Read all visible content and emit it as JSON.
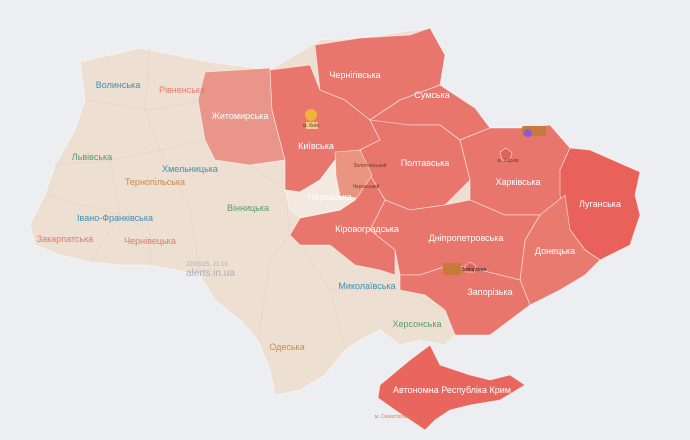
{
  "colors": {
    "background": "#eceef1",
    "no_alert": "#eddfd1",
    "alert": "#e8766c",
    "alert_light": "#e9958a",
    "alert_strong": "#e8615a",
    "raion_alert": "#e9957f"
  },
  "regions": [
    {
      "key": "volyn",
      "label": "Волинська",
      "alert": false,
      "color": "#3a8fb5"
    },
    {
      "key": "rivne",
      "label": "Рівненська",
      "alert": false,
      "color": "#e07a6a"
    },
    {
      "key": "lviv",
      "label": "Львівська",
      "alert": false,
      "color": "#5a9a6a"
    },
    {
      "key": "ternopil",
      "label": "Тернопільська",
      "alert": false,
      "color": "#c98a4a"
    },
    {
      "key": "khmelnytskyi",
      "label": "Хмельницька",
      "alert": false,
      "color": "#3a8fb5"
    },
    {
      "key": "ivano",
      "label": "Івано-Франківська",
      "alert": false,
      "color": "#3a8fb5"
    },
    {
      "key": "zakarpattia",
      "label": "Закарпатська",
      "alert": false,
      "color": "#e07a6a"
    },
    {
      "key": "chernivtsi",
      "label": "Чернівецька",
      "alert": false,
      "color": "#e07a6a"
    },
    {
      "key": "vinnytsia",
      "label": "Вінницька",
      "alert": false,
      "color": "#5a9a6a"
    },
    {
      "key": "zhytomyr",
      "label": "Житомирська",
      "alert": true
    },
    {
      "key": "kyiv",
      "label": "Київська",
      "alert": true
    },
    {
      "key": "chernihiv",
      "label": "Чернігівська",
      "alert": true
    },
    {
      "key": "sumy",
      "label": "Сумська",
      "alert": true
    },
    {
      "key": "poltava",
      "label": "Полтавська",
      "alert": true
    },
    {
      "key": "kharkiv",
      "label": "Харківська",
      "alert": true
    },
    {
      "key": "luhansk",
      "label": "Луганська",
      "alert": true
    },
    {
      "key": "donetsk",
      "label": "Донецька",
      "alert": true
    },
    {
      "key": "dnipro",
      "label": "Дніпропетровська",
      "alert": true
    },
    {
      "key": "zaporizhzhia",
      "label": "Запорізька",
      "alert": true
    },
    {
      "key": "kirovohrad",
      "label": "Кіровоградська",
      "alert": true
    },
    {
      "key": "cherkasy",
      "label": "Черкаська",
      "alert": false,
      "color": "#ffffff"
    },
    {
      "key": "mykolaiv",
      "label": "Миколаївська",
      "alert": false,
      "color": "#3a8fb5"
    },
    {
      "key": "odesa",
      "label": "Одеська",
      "alert": false,
      "color": "#c98a4a"
    },
    {
      "key": "kherson",
      "label": "Херсонська",
      "alert": false,
      "color": "#5a9a6a"
    },
    {
      "key": "crimea",
      "label": "Автономна Республіка Крим",
      "alert": true
    }
  ],
  "small_labels": {
    "kyiv_city": "м. Київ",
    "zolotonosha": "Золотоніський",
    "cherkasy_raion": "Черкаський",
    "kharkiv_city": "м. Харків",
    "zaporizhzhia_city": "Запоріжжя",
    "sevastopol": "м. Севастополь"
  },
  "watermark": {
    "datetime": "22/03/25, 21:19",
    "site": "alerts.in.ua"
  }
}
